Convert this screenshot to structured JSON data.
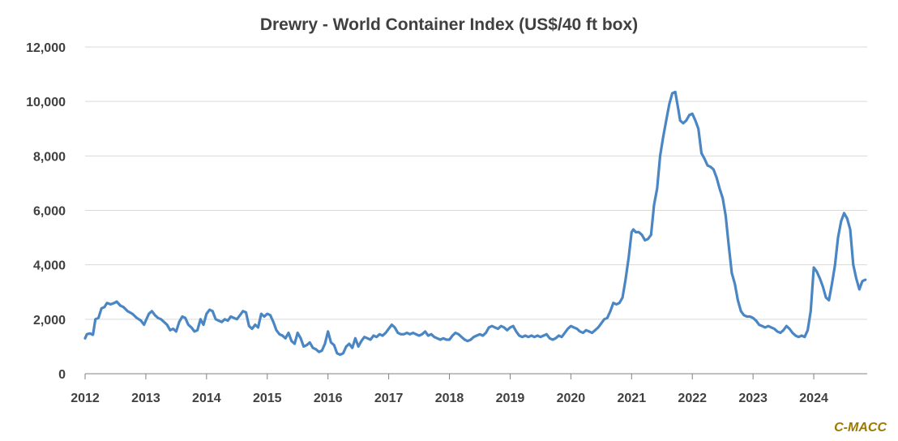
{
  "chart_data": {
    "type": "line",
    "title": "Drewry - World Container Index (US$/40 ft box)",
    "xlabel": "",
    "ylabel": "",
    "xlim": [
      2012.0,
      2024.88
    ],
    "ylim": [
      0,
      12000
    ],
    "y_ticks": [
      "0",
      "2,000",
      "4,000",
      "6,000",
      "8,000",
      "10,000",
      "12,000"
    ],
    "x_ticks": [
      "2012",
      "2013",
      "2014",
      "2015",
      "2016",
      "2017",
      "2018",
      "2019",
      "2020",
      "2021",
      "2022",
      "2023",
      "2024"
    ],
    "grid": "horizontal",
    "legend": "none",
    "series": [
      {
        "color": "#4a86c3",
        "points": [
          [
            2012.0,
            1300
          ],
          [
            2012.03,
            1450
          ],
          [
            2012.08,
            1480
          ],
          [
            2012.13,
            1430
          ],
          [
            2012.17,
            2000
          ],
          [
            2012.22,
            2050
          ],
          [
            2012.27,
            2400
          ],
          [
            2012.32,
            2450
          ],
          [
            2012.36,
            2600
          ],
          [
            2012.42,
            2550
          ],
          [
            2012.48,
            2600
          ],
          [
            2012.52,
            2650
          ],
          [
            2012.58,
            2500
          ],
          [
            2012.63,
            2450
          ],
          [
            2012.7,
            2300
          ],
          [
            2012.78,
            2200
          ],
          [
            2012.85,
            2050
          ],
          [
            2012.92,
            1950
          ],
          [
            2012.97,
            1800
          ],
          [
            2013.0,
            1950
          ],
          [
            2013.05,
            2200
          ],
          [
            2013.1,
            2300
          ],
          [
            2013.15,
            2150
          ],
          [
            2013.2,
            2050
          ],
          [
            2013.25,
            2000
          ],
          [
            2013.3,
            1900
          ],
          [
            2013.35,
            1800
          ],
          [
            2013.4,
            1600
          ],
          [
            2013.45,
            1650
          ],
          [
            2013.5,
            1550
          ],
          [
            2013.55,
            1900
          ],
          [
            2013.6,
            2100
          ],
          [
            2013.65,
            2050
          ],
          [
            2013.7,
            1800
          ],
          [
            2013.75,
            1700
          ],
          [
            2013.8,
            1550
          ],
          [
            2013.85,
            1600
          ],
          [
            2013.9,
            2000
          ],
          [
            2013.95,
            1800
          ],
          [
            2014.0,
            2200
          ],
          [
            2014.05,
            2350
          ],
          [
            2014.1,
            2300
          ],
          [
            2014.15,
            2000
          ],
          [
            2014.2,
            1950
          ],
          [
            2014.25,
            1900
          ],
          [
            2014.3,
            2000
          ],
          [
            2014.35,
            1950
          ],
          [
            2014.4,
            2100
          ],
          [
            2014.45,
            2050
          ],
          [
            2014.5,
            2000
          ],
          [
            2014.55,
            2150
          ],
          [
            2014.6,
            2300
          ],
          [
            2014.65,
            2250
          ],
          [
            2014.7,
            1750
          ],
          [
            2014.75,
            1650
          ],
          [
            2014.8,
            1800
          ],
          [
            2014.85,
            1700
          ],
          [
            2014.9,
            2200
          ],
          [
            2014.95,
            2100
          ],
          [
            2015.0,
            2200
          ],
          [
            2015.05,
            2150
          ],
          [
            2015.1,
            1900
          ],
          [
            2015.15,
            1600
          ],
          [
            2015.2,
            1450
          ],
          [
            2015.25,
            1400
          ],
          [
            2015.3,
            1300
          ],
          [
            2015.35,
            1500
          ],
          [
            2015.4,
            1200
          ],
          [
            2015.45,
            1100
          ],
          [
            2015.5,
            1500
          ],
          [
            2015.55,
            1300
          ],
          [
            2015.6,
            1000
          ],
          [
            2015.65,
            1050
          ],
          [
            2015.7,
            1150
          ],
          [
            2015.75,
            950
          ],
          [
            2015.8,
            900
          ],
          [
            2015.85,
            800
          ],
          [
            2015.9,
            850
          ],
          [
            2015.95,
            1100
          ],
          [
            2016.0,
            1550
          ],
          [
            2016.05,
            1150
          ],
          [
            2016.1,
            1050
          ],
          [
            2016.15,
            750
          ],
          [
            2016.2,
            700
          ],
          [
            2016.25,
            750
          ],
          [
            2016.3,
            1000
          ],
          [
            2016.35,
            1100
          ],
          [
            2016.4,
            950
          ],
          [
            2016.45,
            1300
          ],
          [
            2016.5,
            1000
          ],
          [
            2016.55,
            1200
          ],
          [
            2016.6,
            1350
          ],
          [
            2016.65,
            1300
          ],
          [
            2016.7,
            1250
          ],
          [
            2016.75,
            1400
          ],
          [
            2016.8,
            1350
          ],
          [
            2016.85,
            1450
          ],
          [
            2016.9,
            1400
          ],
          [
            2016.95,
            1500
          ],
          [
            2017.0,
            1650
          ],
          [
            2017.05,
            1800
          ],
          [
            2017.1,
            1700
          ],
          [
            2017.15,
            1500
          ],
          [
            2017.2,
            1450
          ],
          [
            2017.25,
            1450
          ],
          [
            2017.3,
            1500
          ],
          [
            2017.35,
            1450
          ],
          [
            2017.4,
            1500
          ],
          [
            2017.45,
            1450
          ],
          [
            2017.5,
            1400
          ],
          [
            2017.55,
            1450
          ],
          [
            2017.6,
            1550
          ],
          [
            2017.65,
            1400
          ],
          [
            2017.7,
            1450
          ],
          [
            2017.75,
            1350
          ],
          [
            2017.8,
            1300
          ],
          [
            2017.85,
            1250
          ],
          [
            2017.9,
            1300
          ],
          [
            2017.95,
            1250
          ],
          [
            2018.0,
            1250
          ],
          [
            2018.05,
            1400
          ],
          [
            2018.1,
            1500
          ],
          [
            2018.15,
            1450
          ],
          [
            2018.2,
            1350
          ],
          [
            2018.25,
            1250
          ],
          [
            2018.3,
            1200
          ],
          [
            2018.35,
            1250
          ],
          [
            2018.4,
            1350
          ],
          [
            2018.45,
            1400
          ],
          [
            2018.5,
            1450
          ],
          [
            2018.55,
            1400
          ],
          [
            2018.6,
            1500
          ],
          [
            2018.65,
            1700
          ],
          [
            2018.7,
            1750
          ],
          [
            2018.75,
            1700
          ],
          [
            2018.8,
            1650
          ],
          [
            2018.85,
            1750
          ],
          [
            2018.9,
            1700
          ],
          [
            2018.95,
            1600
          ],
          [
            2019.0,
            1700
          ],
          [
            2019.05,
            1750
          ],
          [
            2019.1,
            1550
          ],
          [
            2019.15,
            1400
          ],
          [
            2019.2,
            1350
          ],
          [
            2019.25,
            1400
          ],
          [
            2019.3,
            1350
          ],
          [
            2019.35,
            1400
          ],
          [
            2019.4,
            1350
          ],
          [
            2019.45,
            1400
          ],
          [
            2019.5,
            1350
          ],
          [
            2019.55,
            1400
          ],
          [
            2019.6,
            1450
          ],
          [
            2019.65,
            1300
          ],
          [
            2019.7,
            1250
          ],
          [
            2019.75,
            1300
          ],
          [
            2019.8,
            1400
          ],
          [
            2019.85,
            1350
          ],
          [
            2019.9,
            1500
          ],
          [
            2019.95,
            1650
          ],
          [
            2020.0,
            1750
          ],
          [
            2020.05,
            1700
          ],
          [
            2020.1,
            1650
          ],
          [
            2020.15,
            1550
          ],
          [
            2020.2,
            1500
          ],
          [
            2020.25,
            1600
          ],
          [
            2020.3,
            1550
          ],
          [
            2020.35,
            1500
          ],
          [
            2020.4,
            1600
          ],
          [
            2020.45,
            1700
          ],
          [
            2020.5,
            1850
          ],
          [
            2020.55,
            2000
          ],
          [
            2020.6,
            2050
          ],
          [
            2020.65,
            2300
          ],
          [
            2020.7,
            2600
          ],
          [
            2020.75,
            2550
          ],
          [
            2020.8,
            2600
          ],
          [
            2020.85,
            2800
          ],
          [
            2020.9,
            3450
          ],
          [
            2020.95,
            4250
          ],
          [
            2021.0,
            5200
          ],
          [
            2021.03,
            5300
          ],
          [
            2021.07,
            5200
          ],
          [
            2021.12,
            5200
          ],
          [
            2021.17,
            5100
          ],
          [
            2021.22,
            4900
          ],
          [
            2021.27,
            4950
          ],
          [
            2021.32,
            5100
          ],
          [
            2021.37,
            6200
          ],
          [
            2021.42,
            6800
          ],
          [
            2021.47,
            8000
          ],
          [
            2021.52,
            8700
          ],
          [
            2021.57,
            9300
          ],
          [
            2021.62,
            9900
          ],
          [
            2021.67,
            10300
          ],
          [
            2021.72,
            10350
          ],
          [
            2021.77,
            9700
          ],
          [
            2021.8,
            9300
          ],
          [
            2021.85,
            9200
          ],
          [
            2021.9,
            9300
          ],
          [
            2021.95,
            9500
          ],
          [
            2022.0,
            9550
          ],
          [
            2022.05,
            9300
          ],
          [
            2022.1,
            9000
          ],
          [
            2022.15,
            8100
          ],
          [
            2022.2,
            7900
          ],
          [
            2022.25,
            7650
          ],
          [
            2022.3,
            7600
          ],
          [
            2022.35,
            7500
          ],
          [
            2022.4,
            7200
          ],
          [
            2022.45,
            6800
          ],
          [
            2022.5,
            6450
          ],
          [
            2022.55,
            5800
          ],
          [
            2022.6,
            4700
          ],
          [
            2022.65,
            3700
          ],
          [
            2022.7,
            3300
          ],
          [
            2022.75,
            2700
          ],
          [
            2022.8,
            2300
          ],
          [
            2022.85,
            2150
          ],
          [
            2022.9,
            2100
          ],
          [
            2022.95,
            2100
          ],
          [
            2023.0,
            2050
          ],
          [
            2023.05,
            1950
          ],
          [
            2023.1,
            1800
          ],
          [
            2023.15,
            1750
          ],
          [
            2023.2,
            1700
          ],
          [
            2023.25,
            1750
          ],
          [
            2023.3,
            1700
          ],
          [
            2023.35,
            1650
          ],
          [
            2023.4,
            1550
          ],
          [
            2023.45,
            1500
          ],
          [
            2023.5,
            1600
          ],
          [
            2023.55,
            1750
          ],
          [
            2023.6,
            1650
          ],
          [
            2023.65,
            1500
          ],
          [
            2023.7,
            1400
          ],
          [
            2023.75,
            1350
          ],
          [
            2023.8,
            1400
          ],
          [
            2023.85,
            1350
          ],
          [
            2023.9,
            1600
          ],
          [
            2023.95,
            2300
          ],
          [
            2024.0,
            3900
          ],
          [
            2024.05,
            3750
          ],
          [
            2024.1,
            3500
          ],
          [
            2024.15,
            3200
          ],
          [
            2024.2,
            2800
          ],
          [
            2024.25,
            2700
          ],
          [
            2024.3,
            3300
          ],
          [
            2024.35,
            4000
          ],
          [
            2024.4,
            5000
          ],
          [
            2024.45,
            5600
          ],
          [
            2024.5,
            5900
          ],
          [
            2024.55,
            5700
          ],
          [
            2024.6,
            5300
          ],
          [
            2024.65,
            4000
          ],
          [
            2024.7,
            3500
          ],
          [
            2024.75,
            3100
          ],
          [
            2024.8,
            3400
          ],
          [
            2024.85,
            3450
          ]
        ]
      }
    ]
  },
  "watermark": "C-MACC"
}
